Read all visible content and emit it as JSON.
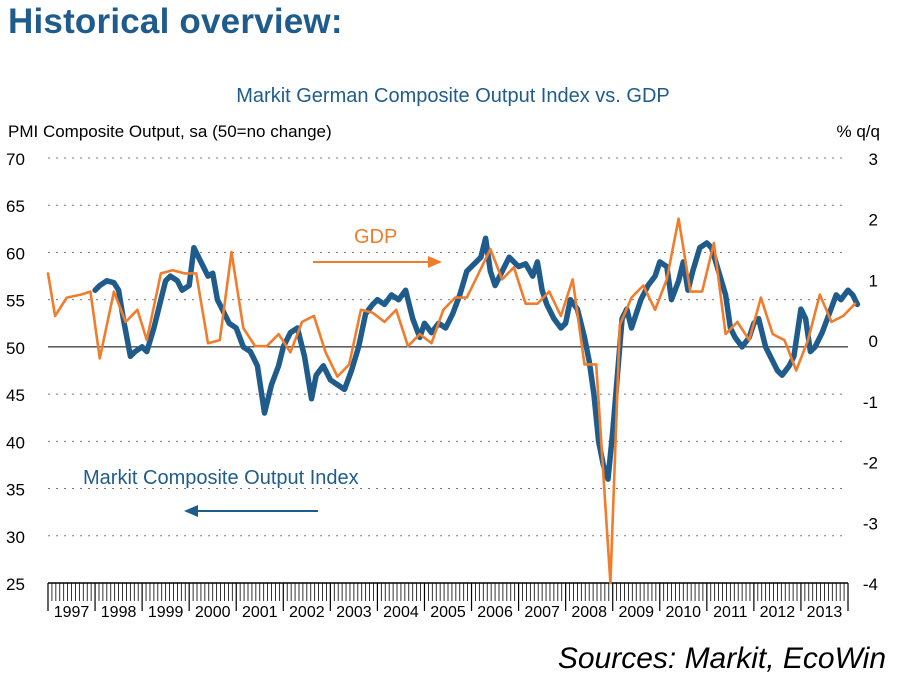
{
  "page": {
    "heading": "Historical overview:",
    "sources": "Sources: Markit, EcoWin"
  },
  "colors": {
    "pmi": "#1f5c8c",
    "gdp": "#f07c2c",
    "heading": "#1f5c8c",
    "grid": "#7a7a7a",
    "axis": "#000000"
  },
  "chart_data": {
    "type": "line",
    "title": "Markit German Composite Output Index vs. GDP",
    "ylabel": "PMI Composite Output, sa (50=no change)",
    "y2label": "% q/q",
    "ylim": [
      25,
      70
    ],
    "y2lim": [
      -4,
      3
    ],
    "yticks": [
      25,
      30,
      35,
      40,
      45,
      50,
      55,
      60,
      65,
      70
    ],
    "y2ticks": [
      -4,
      -3,
      -2,
      -1,
      0,
      1,
      2,
      3
    ],
    "xlim": [
      1997.0,
      2014.0
    ],
    "xticks": [
      "1997",
      "1998",
      "1999",
      "2000",
      "2001",
      "2002",
      "2003",
      "2004",
      "2005",
      "2006",
      "2007",
      "2008",
      "2009",
      "2010",
      "2011",
      "2012",
      "2013"
    ],
    "grid": true,
    "reference_line": {
      "axis": "y",
      "value": 50
    },
    "series": [
      {
        "name": "Markit Composite Output Index",
        "axis": "left",
        "points": [
          [
            1998.0,
            56.0
          ],
          [
            1998.1,
            56.5
          ],
          [
            1998.25,
            57.0
          ],
          [
            1998.4,
            56.8
          ],
          [
            1998.5,
            56.0
          ],
          [
            1998.6,
            53.0
          ],
          [
            1998.75,
            49.0
          ],
          [
            1998.85,
            49.5
          ],
          [
            1999.0,
            50.0
          ],
          [
            1999.1,
            49.5
          ],
          [
            1999.25,
            52.0
          ],
          [
            1999.4,
            55.0
          ],
          [
            1999.5,
            57.0
          ],
          [
            1999.6,
            57.5
          ],
          [
            1999.75,
            57.0
          ],
          [
            1999.85,
            56.0
          ],
          [
            2000.0,
            56.5
          ],
          [
            2000.1,
            60.5
          ],
          [
            2000.25,
            59.0
          ],
          [
            2000.4,
            57.5
          ],
          [
            2000.5,
            57.8
          ],
          [
            2000.6,
            55.0
          ],
          [
            2000.75,
            53.5
          ],
          [
            2000.85,
            52.5
          ],
          [
            2001.0,
            52.0
          ],
          [
            2001.15,
            50.0
          ],
          [
            2001.3,
            49.5
          ],
          [
            2001.45,
            48.0
          ],
          [
            2001.6,
            43.0
          ],
          [
            2001.75,
            46.0
          ],
          [
            2001.9,
            48.0
          ],
          [
            2002.0,
            50.0
          ],
          [
            2002.15,
            51.5
          ],
          [
            2002.3,
            52.0
          ],
          [
            2002.45,
            49.0
          ],
          [
            2002.6,
            44.5
          ],
          [
            2002.7,
            47.0
          ],
          [
            2002.85,
            48.0
          ],
          [
            2003.0,
            46.5
          ],
          [
            2003.15,
            46.0
          ],
          [
            2003.3,
            45.5
          ],
          [
            2003.45,
            47.5
          ],
          [
            2003.6,
            50.0
          ],
          [
            2003.75,
            53.5
          ],
          [
            2003.9,
            54.5
          ],
          [
            2004.0,
            55.0
          ],
          [
            2004.15,
            54.5
          ],
          [
            2004.3,
            55.5
          ],
          [
            2004.45,
            55.0
          ],
          [
            2004.6,
            56.0
          ],
          [
            2004.75,
            53.0
          ],
          [
            2004.9,
            51.0
          ],
          [
            2005.0,
            52.5
          ],
          [
            2005.15,
            51.5
          ],
          [
            2005.3,
            52.5
          ],
          [
            2005.45,
            52.0
          ],
          [
            2005.6,
            53.5
          ],
          [
            2005.75,
            55.5
          ],
          [
            2005.9,
            58.0
          ],
          [
            2006.0,
            58.5
          ],
          [
            2006.1,
            59.0
          ],
          [
            2006.2,
            59.5
          ],
          [
            2006.3,
            61.5
          ],
          [
            2006.4,
            58.0
          ],
          [
            2006.5,
            56.5
          ],
          [
            2006.6,
            57.5
          ],
          [
            2006.7,
            58.5
          ],
          [
            2006.8,
            59.5
          ],
          [
            2006.9,
            59.0
          ],
          [
            2007.0,
            58.5
          ],
          [
            2007.15,
            58.8
          ],
          [
            2007.3,
            57.5
          ],
          [
            2007.4,
            59.0
          ],
          [
            2007.5,
            56.0
          ],
          [
            2007.6,
            54.5
          ],
          [
            2007.75,
            53.0
          ],
          [
            2007.9,
            52.0
          ],
          [
            2008.0,
            52.5
          ],
          [
            2008.1,
            55.0
          ],
          [
            2008.25,
            54.0
          ],
          [
            2008.4,
            51.0
          ],
          [
            2008.5,
            48.5
          ],
          [
            2008.6,
            45.0
          ],
          [
            2008.7,
            40.0
          ],
          [
            2008.8,
            37.5
          ],
          [
            2008.9,
            36.0
          ],
          [
            2009.0,
            41.0
          ],
          [
            2009.1,
            47.0
          ],
          [
            2009.2,
            53.0
          ],
          [
            2009.3,
            54.0
          ],
          [
            2009.4,
            52.0
          ],
          [
            2009.5,
            53.5
          ],
          [
            2009.6,
            55.0
          ],
          [
            2009.75,
            56.5
          ],
          [
            2009.9,
            57.5
          ],
          [
            2010.0,
            59.0
          ],
          [
            2010.15,
            58.5
          ],
          [
            2010.25,
            55.0
          ],
          [
            2010.4,
            57.0
          ],
          [
            2010.5,
            59.0
          ],
          [
            2010.6,
            56.0
          ],
          [
            2010.7,
            58.0
          ],
          [
            2010.85,
            60.5
          ],
          [
            2011.0,
            61.0
          ],
          [
            2011.1,
            60.5
          ],
          [
            2011.25,
            58.0
          ],
          [
            2011.4,
            55.5
          ],
          [
            2011.5,
            52.0
          ],
          [
            2011.6,
            51.0
          ],
          [
            2011.75,
            50.0
          ],
          [
            2011.9,
            51.0
          ],
          [
            2012.0,
            52.5
          ],
          [
            2012.1,
            53.0
          ],
          [
            2012.25,
            50.0
          ],
          [
            2012.4,
            48.5
          ],
          [
            2012.5,
            47.5
          ],
          [
            2012.6,
            47.0
          ],
          [
            2012.75,
            48.0
          ],
          [
            2012.85,
            49.0
          ],
          [
            2013.0,
            54.0
          ],
          [
            2013.1,
            53.0
          ],
          [
            2013.2,
            49.5
          ],
          [
            2013.3,
            50.0
          ],
          [
            2013.45,
            51.5
          ],
          [
            2013.6,
            53.5
          ],
          [
            2013.75,
            55.5
          ],
          [
            2013.85,
            55.0
          ],
          [
            2014.0,
            56.0
          ],
          [
            2014.1,
            55.5
          ],
          [
            2014.2,
            54.5
          ]
        ]
      },
      {
        "name": "GDP",
        "axis": "right",
        "points": [
          [
            1997.0,
            1.1
          ],
          [
            1997.15,
            0.4
          ],
          [
            1997.4,
            0.7
          ],
          [
            1997.7,
            0.75
          ],
          [
            1997.9,
            0.8
          ],
          [
            1998.1,
            -0.3
          ],
          [
            1998.4,
            0.8
          ],
          [
            1998.65,
            0.3
          ],
          [
            1998.9,
            0.5
          ],
          [
            1999.1,
            0.0
          ],
          [
            1999.4,
            1.1
          ],
          [
            1999.65,
            1.15
          ],
          [
            1999.9,
            1.1
          ],
          [
            2000.15,
            1.1
          ],
          [
            2000.4,
            -0.05
          ],
          [
            2000.65,
            0.0
          ],
          [
            2000.9,
            1.45
          ],
          [
            2001.15,
            0.2
          ],
          [
            2001.4,
            -0.1
          ],
          [
            2001.65,
            -0.1
          ],
          [
            2001.9,
            0.1
          ],
          [
            2002.15,
            -0.2
          ],
          [
            2002.4,
            0.3
          ],
          [
            2002.65,
            0.4
          ],
          [
            2002.9,
            -0.2
          ],
          [
            2003.15,
            -0.6
          ],
          [
            2003.4,
            -0.4
          ],
          [
            2003.65,
            0.5
          ],
          [
            2003.9,
            0.45
          ],
          [
            2004.15,
            0.3
          ],
          [
            2004.4,
            0.5
          ],
          [
            2004.65,
            -0.1
          ],
          [
            2004.9,
            0.1
          ],
          [
            2005.15,
            -0.05
          ],
          [
            2005.4,
            0.5
          ],
          [
            2005.65,
            0.7
          ],
          [
            2005.9,
            0.7
          ],
          [
            2006.15,
            1.1
          ],
          [
            2006.4,
            1.5
          ],
          [
            2006.65,
            1.0
          ],
          [
            2006.9,
            1.2
          ],
          [
            2007.15,
            0.6
          ],
          [
            2007.4,
            0.6
          ],
          [
            2007.65,
            0.8
          ],
          [
            2007.9,
            0.4
          ],
          [
            2008.15,
            1.0
          ],
          [
            2008.4,
            -0.4
          ],
          [
            2008.65,
            -0.4
          ],
          [
            2008.95,
            -4.0
          ],
          [
            2009.15,
            0.25
          ],
          [
            2009.4,
            0.7
          ],
          [
            2009.65,
            0.9
          ],
          [
            2009.9,
            0.5
          ],
          [
            2010.15,
            1.0
          ],
          [
            2010.4,
            2.0
          ],
          [
            2010.65,
            0.8
          ],
          [
            2010.9,
            0.8
          ],
          [
            2011.15,
            1.6
          ],
          [
            2011.4,
            0.1
          ],
          [
            2011.65,
            0.3
          ],
          [
            2011.9,
            0.0
          ],
          [
            2012.15,
            0.7
          ],
          [
            2012.4,
            0.1
          ],
          [
            2012.65,
            0.0
          ],
          [
            2012.9,
            -0.5
          ],
          [
            2013.15,
            0.0
          ],
          [
            2013.4,
            0.75
          ],
          [
            2013.65,
            0.3
          ],
          [
            2013.9,
            0.4
          ],
          [
            2014.15,
            0.6
          ]
        ]
      }
    ],
    "annotations": [
      {
        "text": "GDP",
        "arrow": "right"
      },
      {
        "text": "Markit Composite Output Index",
        "arrow": "left"
      }
    ]
  }
}
